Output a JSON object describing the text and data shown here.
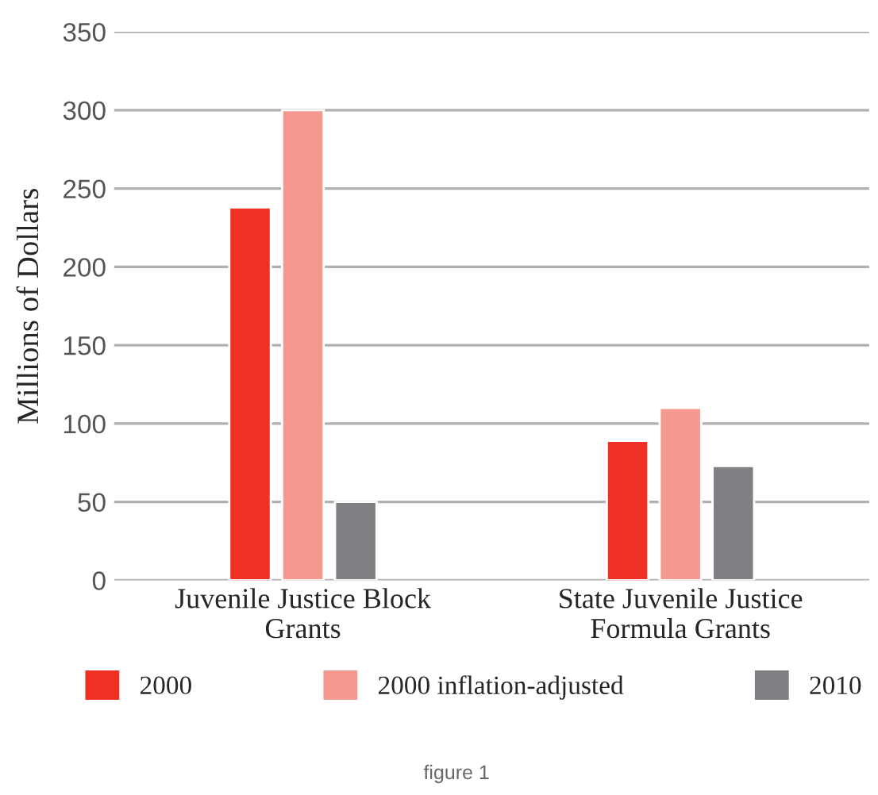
{
  "chart_data": {
    "type": "bar",
    "ylabel": "Millions of Dollars",
    "categories": [
      "Juvenile Justice Block\nGrants",
      "State Juvenile Justice\nFormula Grants"
    ],
    "series": [
      {
        "name": "2000",
        "color": "#ee3124",
        "values": [
          238,
          89
        ]
      },
      {
        "name": "2000 inflation-adjusted",
        "color": "#f59890",
        "values": [
          300,
          110
        ]
      },
      {
        "name": "2010",
        "color": "#808084",
        "values": [
          50,
          73
        ]
      }
    ],
    "ylim": [
      0,
      350
    ],
    "yticks": [
      0,
      50,
      100,
      150,
      200,
      250,
      300,
      350
    ],
    "grid": "y",
    "legend": "bottom",
    "annotations": [
      "figure 1"
    ]
  }
}
